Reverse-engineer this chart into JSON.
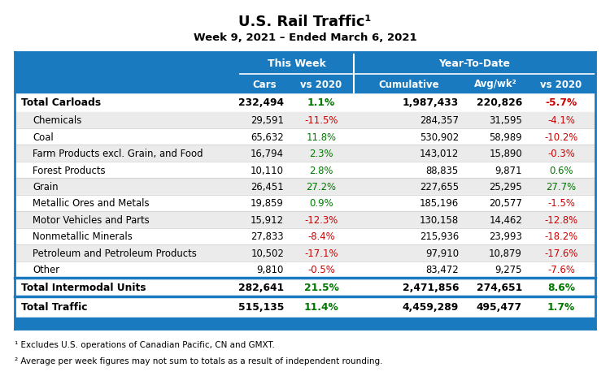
{
  "title": "U.S. Rail Traffic¹",
  "subtitle": "Week 9, 2021 – Ended March 6, 2021",
  "rows": [
    {
      "label": "Total Carloads",
      "bold": true,
      "sep_above": false,
      "cars": "232,494",
      "vs_tw": "1.1%",
      "vs_tw_c": "green",
      "cum": "1,987,433",
      "avg": "220,826",
      "vs_ytd": "-5.7%",
      "vs_ytd_c": "red"
    },
    {
      "label": "Chemicals",
      "bold": false,
      "sep_above": false,
      "cars": "29,591",
      "vs_tw": "-11.5%",
      "vs_tw_c": "red",
      "cum": "284,357",
      "avg": "31,595",
      "vs_ytd": "-4.1%",
      "vs_ytd_c": "red"
    },
    {
      "label": "Coal",
      "bold": false,
      "sep_above": false,
      "cars": "65,632",
      "vs_tw": "11.8%",
      "vs_tw_c": "green",
      "cum": "530,902",
      "avg": "58,989",
      "vs_ytd": "-10.2%",
      "vs_ytd_c": "red"
    },
    {
      "label": "Farm Products excl. Grain, and Food",
      "bold": false,
      "sep_above": false,
      "cars": "16,794",
      "vs_tw": "2.3%",
      "vs_tw_c": "green",
      "cum": "143,012",
      "avg": "15,890",
      "vs_ytd": "-0.3%",
      "vs_ytd_c": "red"
    },
    {
      "label": "Forest Products",
      "bold": false,
      "sep_above": false,
      "cars": "10,110",
      "vs_tw": "2.8%",
      "vs_tw_c": "green",
      "cum": "88,835",
      "avg": "9,871",
      "vs_ytd": "0.6%",
      "vs_ytd_c": "green"
    },
    {
      "label": "Grain",
      "bold": false,
      "sep_above": false,
      "cars": "26,451",
      "vs_tw": "27.2%",
      "vs_tw_c": "green",
      "cum": "227,655",
      "avg": "25,295",
      "vs_ytd": "27.7%",
      "vs_ytd_c": "green"
    },
    {
      "label": "Metallic Ores and Metals",
      "bold": false,
      "sep_above": false,
      "cars": "19,859",
      "vs_tw": "0.9%",
      "vs_tw_c": "green",
      "cum": "185,196",
      "avg": "20,577",
      "vs_ytd": "-1.5%",
      "vs_ytd_c": "red"
    },
    {
      "label": "Motor Vehicles and Parts",
      "bold": false,
      "sep_above": false,
      "cars": "15,912",
      "vs_tw": "-12.3%",
      "vs_tw_c": "red",
      "cum": "130,158",
      "avg": "14,462",
      "vs_ytd": "-12.8%",
      "vs_ytd_c": "red"
    },
    {
      "label": "Nonmetallic Minerals",
      "bold": false,
      "sep_above": false,
      "cars": "27,833",
      "vs_tw": "-8.4%",
      "vs_tw_c": "red",
      "cum": "215,936",
      "avg": "23,993",
      "vs_ytd": "-18.2%",
      "vs_ytd_c": "red"
    },
    {
      "label": "Petroleum and Petroleum Products",
      "bold": false,
      "sep_above": false,
      "cars": "10,502",
      "vs_tw": "-17.1%",
      "vs_tw_c": "red",
      "cum": "97,910",
      "avg": "10,879",
      "vs_ytd": "-17.6%",
      "vs_ytd_c": "red"
    },
    {
      "label": "Other",
      "bold": false,
      "sep_above": false,
      "cars": "9,810",
      "vs_tw": "-0.5%",
      "vs_tw_c": "red",
      "cum": "83,472",
      "avg": "9,275",
      "vs_ytd": "-7.6%",
      "vs_ytd_c": "red"
    },
    {
      "label": "Total Intermodal Units",
      "bold": true,
      "sep_above": true,
      "cars": "282,641",
      "vs_tw": "21.5%",
      "vs_tw_c": "green",
      "cum": "2,471,856",
      "avg": "274,651",
      "vs_ytd": "8.6%",
      "vs_ytd_c": "green"
    },
    {
      "label": "Total Traffic",
      "bold": true,
      "sep_above": true,
      "cars": "515,135",
      "vs_tw": "11.4%",
      "vs_tw_c": "green",
      "cum": "4,459,289",
      "avg": "495,477",
      "vs_ytd": "1.7%",
      "vs_ytd_c": "green"
    }
  ],
  "footnote1": "¹ Excludes U.S. operations of Canadian Pacific, CN and GMXT.",
  "footnote2": "² Average per week figures may not sum to totals as a result of independent rounding.",
  "blue": "#1a7abf",
  "green_color": "#007700",
  "red_color": "#cc0000",
  "row_alt": "#ebebeb",
  "row_white": "#ffffff",
  "table_bg": "#f0f0f0"
}
